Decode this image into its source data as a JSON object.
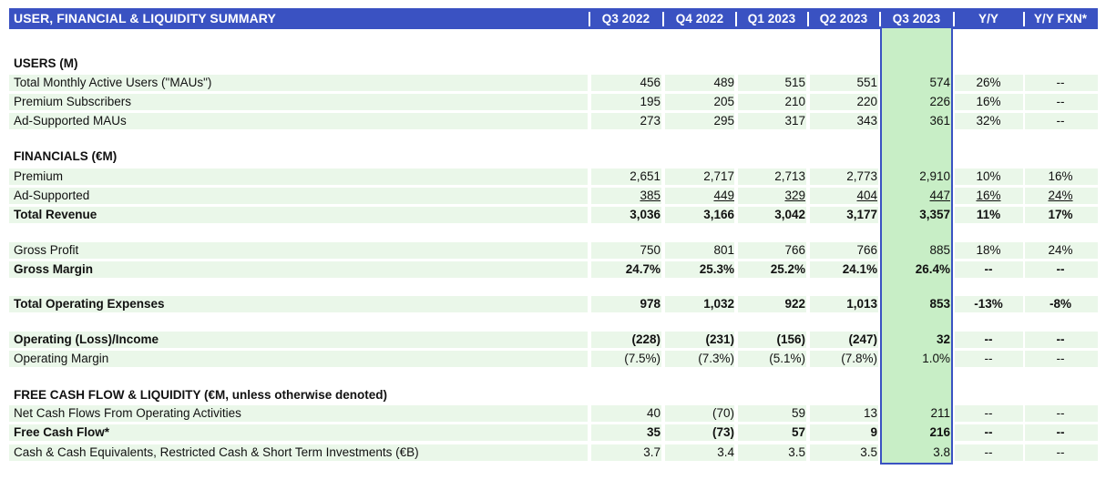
{
  "header": {
    "title": "USER, FINANCIAL & LIQUIDITY SUMMARY",
    "columns": [
      "Q3 2022",
      "Q4 2022",
      "Q1 2023",
      "Q2 2023",
      "Q3 2023",
      "Y/Y",
      "Y/Y FXN*"
    ]
  },
  "sections": {
    "users": "USERS (M)",
    "financials": "FINANCIALS (€M)",
    "fcf": "FREE CASH FLOW & LIQUIDITY (€M, unless otherwise denoted)"
  },
  "rows": [
    {
      "label": "Total Monthly Active Users (\"MAUs\")",
      "values": [
        "456",
        "489",
        "515",
        "551",
        "574",
        "26%",
        "--"
      ]
    },
    {
      "label": "Premium Subscribers",
      "values": [
        "195",
        "205",
        "210",
        "220",
        "226",
        "16%",
        "--"
      ]
    },
    {
      "label": "Ad-Supported MAUs",
      "values": [
        "273",
        "295",
        "317",
        "343",
        "361",
        "32%",
        "--"
      ]
    },
    {
      "label": "Premium",
      "values": [
        "2,651",
        "2,717",
        "2,713",
        "2,773",
        "2,910",
        "10%",
        "16%"
      ]
    },
    {
      "label": "Ad-Supported",
      "values": [
        "385",
        "449",
        "329",
        "404",
        "447",
        "16%",
        "24%"
      ]
    },
    {
      "label": "Total Revenue",
      "values": [
        "3,036",
        "3,166",
        "3,042",
        "3,177",
        "3,357",
        "11%",
        "17%"
      ]
    },
    {
      "label": "Gross Profit",
      "values": [
        "750",
        "801",
        "766",
        "766",
        "885",
        "18%",
        "24%"
      ]
    },
    {
      "label": "Gross Margin",
      "values": [
        "24.7%",
        "25.3%",
        "25.2%",
        "24.1%",
        "26.4%",
        "--",
        "--"
      ]
    },
    {
      "label": "Total Operating Expenses",
      "values": [
        "978",
        "1,032",
        "922",
        "1,013",
        "853",
        "-13%",
        "-8%"
      ]
    },
    {
      "label": "Operating (Loss)/Income",
      "values": [
        "(228)",
        "(231)",
        "(156)",
        "(247)",
        "32",
        "--",
        "--"
      ]
    },
    {
      "label": "Operating Margin",
      "values": [
        "(7.5%)",
        "(7.3%)",
        "(5.1%)",
        "(7.8%)",
        "1.0%",
        "--",
        "--"
      ]
    },
    {
      "label": "Net Cash Flows From Operating Activities",
      "values": [
        "40",
        "(70)",
        "59",
        "13",
        "211",
        "--",
        "--"
      ]
    },
    {
      "label": "Free Cash Flow*",
      "values": [
        "35",
        "(73)",
        "57",
        "9",
        "216",
        "--",
        "--"
      ]
    },
    {
      "label": "Cash & Cash Equivalents, Restricted Cash & Short Term Investments (€B)",
      "values": [
        "3.7",
        "3.4",
        "3.5",
        "3.5",
        "3.8",
        "--",
        "--"
      ]
    }
  ],
  "colors": {
    "header_blue": "#3a52c2",
    "row_band_green": "#eaf7e9",
    "highlight_green": "#c8eec6"
  }
}
